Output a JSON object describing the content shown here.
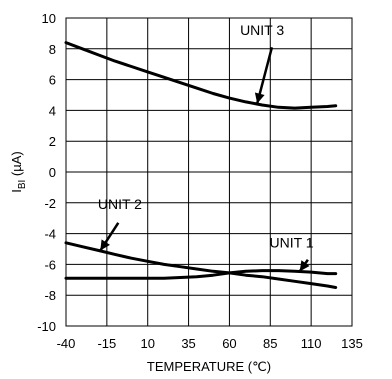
{
  "chart_data": {
    "type": "line",
    "title": "",
    "xlabel": "TEMPERATURE (℃)",
    "ylabel_main": "I",
    "ylabel_sub": "BI",
    "ylabel_unit": " (µA)",
    "xlim": [
      -40,
      135
    ],
    "ylim": [
      -10,
      10
    ],
    "x_ticks": [
      -40,
      -15,
      10,
      35,
      60,
      85,
      110,
      135
    ],
    "y_ticks": [
      -10,
      -8,
      -6,
      -4,
      -2,
      0,
      2,
      4,
      6,
      8,
      10
    ],
    "grid": true,
    "legend": "none",
    "series": [
      {
        "name": "UNIT 3",
        "x": [
          -40,
          -30,
          -20,
          -10,
          0,
          10,
          20,
          30,
          40,
          50,
          60,
          70,
          80,
          90,
          100,
          110,
          120,
          125
        ],
        "y": [
          8.4,
          8.0,
          7.6,
          7.2,
          6.85,
          6.5,
          6.15,
          5.8,
          5.45,
          5.1,
          4.8,
          4.55,
          4.35,
          4.2,
          4.15,
          4.2,
          4.25,
          4.3
        ]
      },
      {
        "name": "UNIT 2",
        "x": [
          -40,
          -30,
          -20,
          -10,
          0,
          10,
          20,
          30,
          40,
          50,
          60,
          70,
          80,
          90,
          100,
          110,
          120,
          125
        ],
        "y": [
          -4.6,
          -4.85,
          -5.1,
          -5.35,
          -5.6,
          -5.8,
          -6.0,
          -6.15,
          -6.3,
          -6.45,
          -6.55,
          -6.7,
          -6.8,
          -6.95,
          -7.1,
          -7.25,
          -7.4,
          -7.5
        ]
      },
      {
        "name": "UNIT 1",
        "x": [
          -40,
          -30,
          -20,
          -10,
          0,
          10,
          20,
          30,
          40,
          50,
          60,
          70,
          80,
          90,
          100,
          110,
          120,
          125
        ],
        "y": [
          -6.9,
          -6.9,
          -6.9,
          -6.9,
          -6.9,
          -6.9,
          -6.9,
          -6.85,
          -6.8,
          -6.7,
          -6.55,
          -6.45,
          -6.4,
          -6.4,
          -6.45,
          -6.5,
          -6.6,
          -6.6
        ]
      }
    ],
    "annotations": [
      {
        "text": "UNIT 3",
        "series": "UNIT 3",
        "text_x": 80,
        "text_y": 8.9,
        "arrow_from": [
          86,
          8.1
        ],
        "arrow_to": [
          77,
          4.45
        ]
      },
      {
        "text": "UNIT 2",
        "series": "UNIT 2",
        "text_x": -7,
        "text_y": -2.4,
        "arrow_from": [
          -8,
          -3.3
        ],
        "arrow_to": [
          -19,
          -5.1
        ]
      },
      {
        "text": "UNIT 1",
        "series": "UNIT 1",
        "text_x": 98,
        "text_y": -4.9,
        "arrow_from": [
          108,
          -5.7
        ],
        "arrow_to": [
          103,
          -6.45
        ]
      }
    ],
    "colors": {
      "line": "#000000",
      "grid": "#000000",
      "background": "#ffffff"
    }
  }
}
